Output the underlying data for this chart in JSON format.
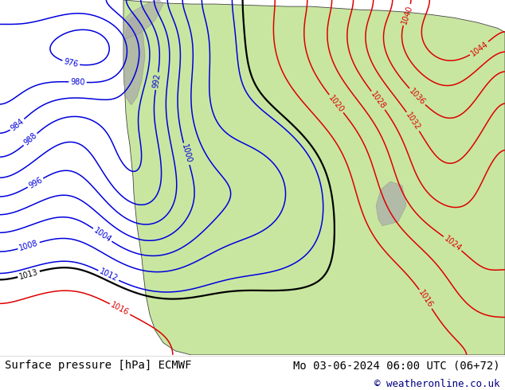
{
  "title_left": "Surface pressure [hPa] ECMWF",
  "title_right": "Mo 03-06-2024 06:00 UTC (06+72)",
  "copyright": "© weatheronline.co.uk",
  "bg_color": "#ffffff",
  "land_color": "#c8e6a0",
  "ocean_color": "#ddeeff",
  "gray_color": "#aaaaaa",
  "blue_color": "#0000dd",
  "red_color": "#dd0000",
  "black_color": "#000000",
  "font_size_labels": 9,
  "font_size_bottom": 10,
  "font_size_copyright": 9,
  "contour_levels_step": 4,
  "contour_min": 976,
  "contour_max": 1044
}
